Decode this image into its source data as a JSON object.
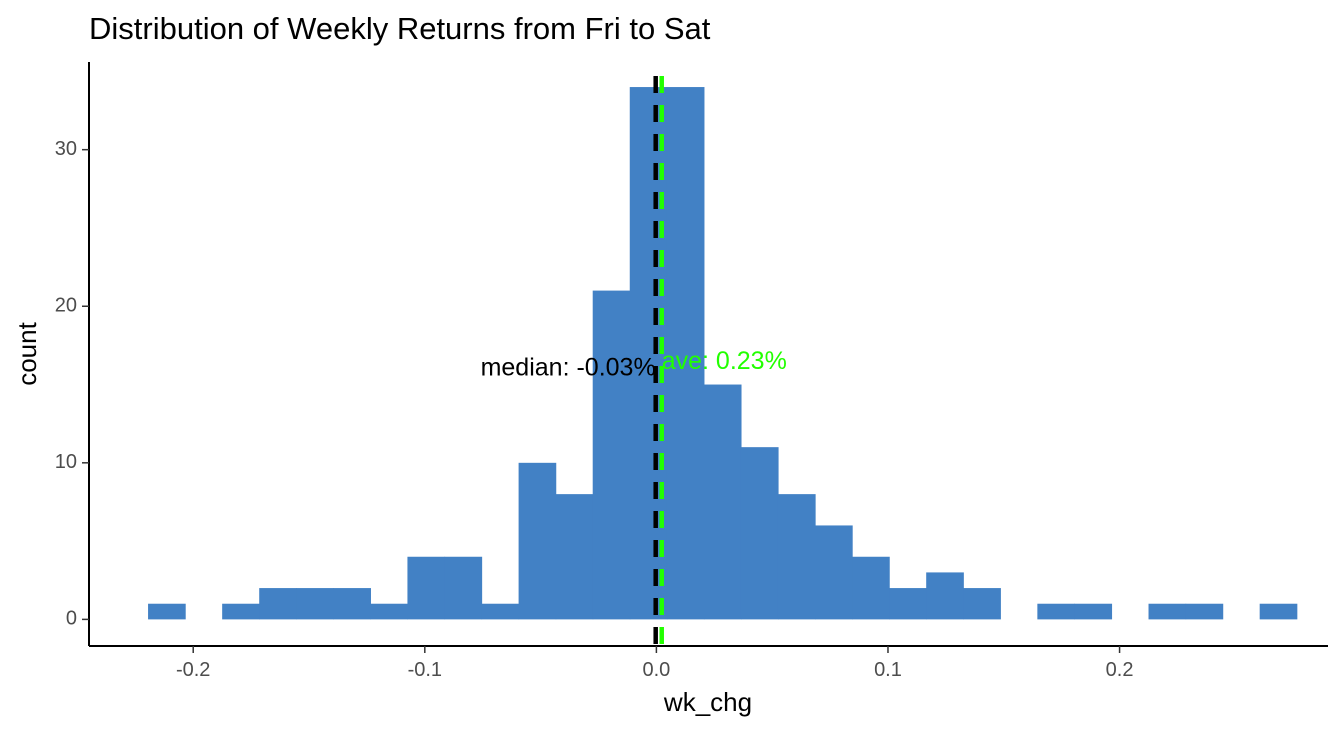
{
  "chart_data": {
    "type": "bar",
    "title": "Distribution of Weekly Returns from Fri to Sat",
    "xlabel": "wk_chg",
    "ylabel": "count",
    "xlim": [
      -0.245,
      0.29
    ],
    "ylim": [
      -1.7,
      35.6
    ],
    "xticks": [
      -0.2,
      -0.1,
      0.0,
      0.1,
      0.2
    ],
    "xtick_labels": [
      "-0.2",
      "-0.1",
      "0.0",
      "0.1",
      "0.2"
    ],
    "yticks": [
      0,
      10,
      20,
      30
    ],
    "ytick_labels": [
      "0",
      "10",
      "20",
      "30"
    ],
    "grid": false,
    "legend": "none",
    "bar_color": "#4281c5",
    "bins": [
      {
        "x0": -0.2195,
        "x1": -0.2035,
        "count": 1
      },
      {
        "x0": -0.2035,
        "x1": -0.1875,
        "count": 0
      },
      {
        "x0": -0.1875,
        "x1": -0.1715,
        "count": 1
      },
      {
        "x0": -0.1715,
        "x1": -0.1555,
        "count": 2
      },
      {
        "x0": -0.1555,
        "x1": -0.1395,
        "count": 2
      },
      {
        "x0": -0.1395,
        "x1": -0.1235,
        "count": 2
      },
      {
        "x0": -0.1235,
        "x1": -0.1075,
        "count": 1
      },
      {
        "x0": -0.1075,
        "x1": -0.0915,
        "count": 4
      },
      {
        "x0": -0.0915,
        "x1": -0.0755,
        "count": 4
      },
      {
        "x0": -0.0755,
        "x1": -0.0595,
        "count": 1
      },
      {
        "x0": -0.0595,
        "x1": -0.0435,
        "count": 10
      },
      {
        "x0": -0.0435,
        "x1": -0.0275,
        "count": 8
      },
      {
        "x0": -0.0275,
        "x1": -0.0115,
        "count": 21
      },
      {
        "x0": -0.0115,
        "x1": 0.0045,
        "count": 34
      },
      {
        "x0": 0.0045,
        "x1": 0.0205,
        "count": 34
      },
      {
        "x0": 0.0205,
        "x1": 0.0365,
        "count": 15
      },
      {
        "x0": 0.0365,
        "x1": 0.0525,
        "count": 11
      },
      {
        "x0": 0.0525,
        "x1": 0.0685,
        "count": 8
      },
      {
        "x0": 0.0685,
        "x1": 0.0845,
        "count": 6
      },
      {
        "x0": 0.0845,
        "x1": 0.1005,
        "count": 4
      },
      {
        "x0": 0.1005,
        "x1": 0.1165,
        "count": 2
      },
      {
        "x0": 0.1165,
        "x1": 0.1325,
        "count": 3
      },
      {
        "x0": 0.1325,
        "x1": 0.1485,
        "count": 2
      },
      {
        "x0": 0.1485,
        "x1": 0.1645,
        "count": 0
      },
      {
        "x0": 0.1645,
        "x1": 0.1805,
        "count": 1
      },
      {
        "x0": 0.1805,
        "x1": 0.1965,
        "count": 1
      },
      {
        "x0": 0.1965,
        "x1": 0.2125,
        "count": 0
      },
      {
        "x0": 0.2125,
        "x1": 0.2285,
        "count": 1
      },
      {
        "x0": 0.2285,
        "x1": 0.2445,
        "count": 1
      },
      {
        "x0": 0.2445,
        "x1": 0.2605,
        "count": 0
      },
      {
        "x0": 0.2605,
        "x1": 0.2765,
        "count": 1
      }
    ],
    "reference_lines": [
      {
        "name": "ave",
        "value": 0.0023,
        "color": "#22ff00",
        "style": "dashed"
      },
      {
        "name": "median",
        "value": -0.0003,
        "color": "#000000",
        "style": "dashed"
      }
    ],
    "annotations": [
      {
        "text": "median: -0.03%",
        "x": -0.0003,
        "y": 16,
        "color": "#000000",
        "anchor": "end"
      },
      {
        "text": "ave: 0.23%",
        "x": 0.0023,
        "y": 16.4,
        "color": "#22ff00",
        "anchor": "start"
      }
    ]
  }
}
